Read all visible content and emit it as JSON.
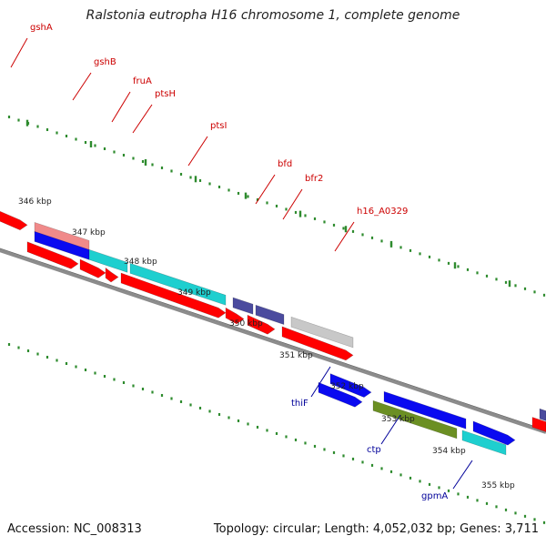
{
  "title": "Ralstonia eutropha H16 chromosome 1, complete genome",
  "accession_text": "Accession: NC_008313",
  "summary_text": "Topology: circular; Length: 4,052,032 bp; Genes: 3,711",
  "colors": {
    "red": "#ff0000",
    "pink": "#f08a8a",
    "blue": "#0a0af0",
    "cyan": "#1ecfcf",
    "navy": "#4b4b9e",
    "gray": "#c8c8c8",
    "olive": "#6b8f23",
    "tick": "#2e8b2e",
    "label_red": "#cc0000",
    "label_blue": "#000099",
    "backbone": "#8c8c8c"
  },
  "scale_ticks": [
    "346 kbp",
    "347 kbp",
    "348 kbp",
    "349 kbp",
    "350 kbp",
    "351 kbp",
    "352 kbp",
    "353 kbp",
    "354 kbp",
    "355 kbp"
  ],
  "gene_labels": [
    {
      "id": "gshA",
      "text": "gshA",
      "color": "red"
    },
    {
      "id": "gshB",
      "text": "gshB",
      "color": "red"
    },
    {
      "id": "fruA",
      "text": "fruA",
      "color": "red"
    },
    {
      "id": "ptsH",
      "text": "ptsH",
      "color": "red"
    },
    {
      "id": "ptsI",
      "text": "ptsI",
      "color": "red"
    },
    {
      "id": "bfd",
      "text": "bfd",
      "color": "red"
    },
    {
      "id": "bfr2",
      "text": "bfr2",
      "color": "red"
    },
    {
      "id": "h16_A0329",
      "text": "h16_A0329",
      "color": "red"
    },
    {
      "id": "thiF",
      "text": "thiF",
      "color": "blue"
    },
    {
      "id": "ctp",
      "text": "ctp",
      "color": "blue"
    },
    {
      "id": "gpmA",
      "text": "gpmA",
      "color": "blue"
    }
  ]
}
